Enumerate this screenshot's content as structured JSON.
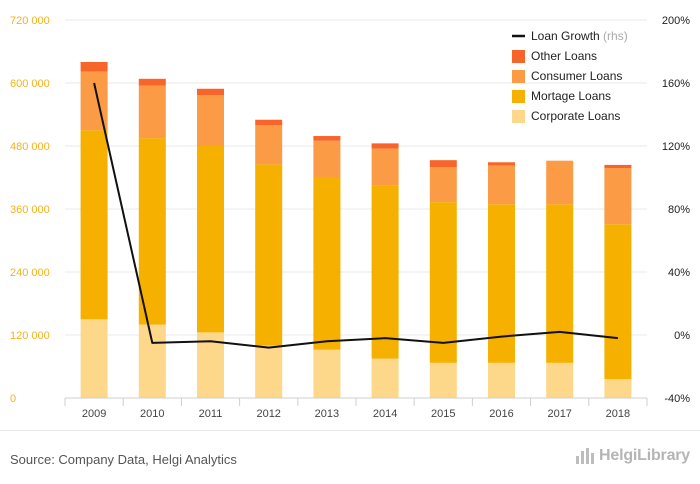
{
  "chart_data": {
    "type": "bar",
    "stacked": true,
    "categories": [
      "2009",
      "2010",
      "2011",
      "2012",
      "2013",
      "2014",
      "2015",
      "2016",
      "2017",
      "2018"
    ],
    "series": [
      {
        "name": "Corporate Loans",
        "color": "#fdd78a",
        "values": [
          150000,
          140000,
          125000,
          100000,
          92000,
          75000,
          67000,
          67000,
          67000,
          36000
        ]
      },
      {
        "name": "Mortage Loans",
        "color": "#f5b000",
        "values": [
          360000,
          355000,
          355000,
          345000,
          328000,
          330000,
          306000,
          302000,
          302000,
          295000
        ]
      },
      {
        "name": "Consumer Loans",
        "color": "#fb9b46",
        "values": [
          112000,
          100000,
          97000,
          75000,
          70000,
          70000,
          67000,
          74000,
          83000,
          107000
        ]
      },
      {
        "name": "Other Loans",
        "color": "#f7652a",
        "values": [
          18000,
          13000,
          12000,
          10000,
          9000,
          10000,
          13000,
          6000,
          0,
          6000
        ]
      }
    ],
    "line_series": {
      "name": "Loan Growth",
      "axis_note": "(rhs)",
      "color": "#111111",
      "axis": "right",
      "unit": "%",
      "values": [
        160,
        -5,
        -4,
        -8,
        -4,
        -2,
        -5,
        -1,
        2,
        -2
      ]
    },
    "y_left": {
      "min": 0,
      "max": 720000,
      "ticks": [
        0,
        120000,
        240000,
        360000,
        480000,
        600000,
        720000
      ],
      "tick_labels": [
        "0",
        "120 000",
        "240 000",
        "360 000",
        "480 000",
        "600 000",
        "720 000"
      ]
    },
    "y_right": {
      "min": -40,
      "max": 200,
      "ticks": [
        -40,
        0,
        40,
        80,
        120,
        160,
        200
      ],
      "tick_labels": [
        "-40%",
        "0%",
        "40%",
        "80%",
        "120%",
        "160%",
        "200%"
      ]
    },
    "legend_order": [
      "Loan Growth",
      "Other Loans",
      "Consumer Loans",
      "Mortage Loans",
      "Corporate Loans"
    ],
    "legend_position": "top-right",
    "grid": "horizontal",
    "title": "",
    "xlabel": "",
    "ylabel": ""
  },
  "footer": {
    "source": "Source: Company Data, Helgi Analytics",
    "brand": "HelgiLibrary"
  },
  "colors": {
    "left_axis_text": "#f5b21a",
    "grid": "#e8e8e8"
  },
  "icons": {
    "brand_logo": "bar-chart-logo-icon"
  }
}
